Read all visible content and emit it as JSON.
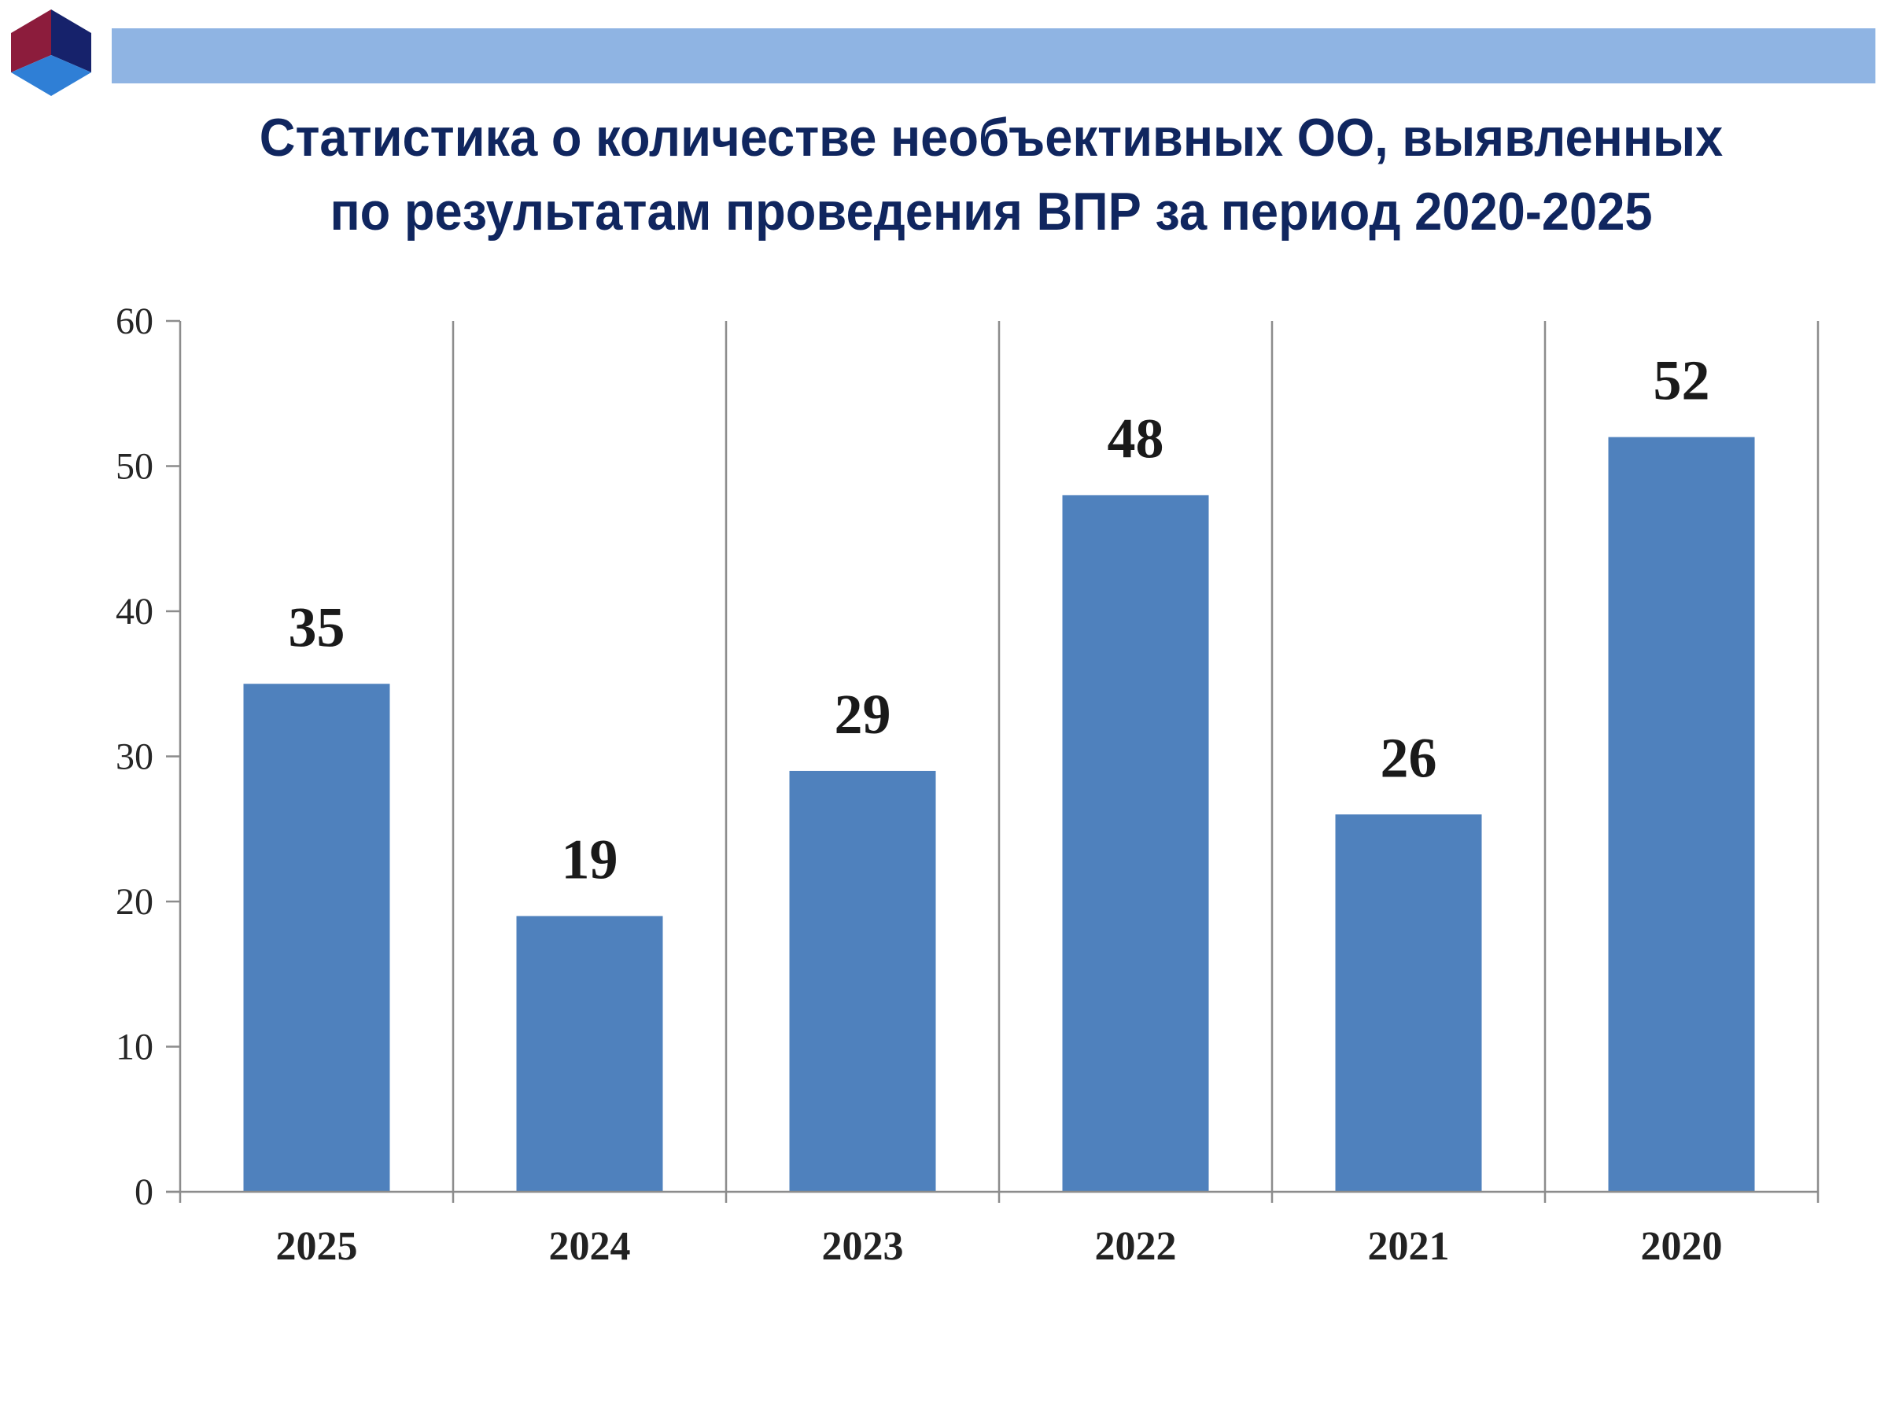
{
  "header": {
    "title_line1": "Статистика о количестве необъективных ОО, выявленных",
    "title_line2": "по результатам проведения ВПР за период 2020-2025"
  },
  "logo": {
    "icon": "cube-logo-icon",
    "colors": [
      "#8c1c3c",
      "#16226b",
      "#2f7fd6"
    ]
  },
  "colors": {
    "bar": "#4f81bd",
    "header_bar": "#8fb4e3",
    "title": "#10265f",
    "axis": "#8c8c8c"
  },
  "chart_data": {
    "type": "bar",
    "categories": [
      "2025",
      "2024",
      "2023",
      "2022",
      "2021",
      "2020"
    ],
    "values": [
      35,
      19,
      29,
      48,
      26,
      52
    ],
    "title": "Статистика о количестве необъективных ОО, выявленных по результатам проведения ВПР за период 2020-2025",
    "xlabel": "",
    "ylabel": "",
    "ylim": [
      0,
      60
    ],
    "yticks": [
      0,
      10,
      20,
      30,
      40,
      50,
      60
    ],
    "data_labels": true,
    "grid": "vertical category separators",
    "legend": "none"
  }
}
